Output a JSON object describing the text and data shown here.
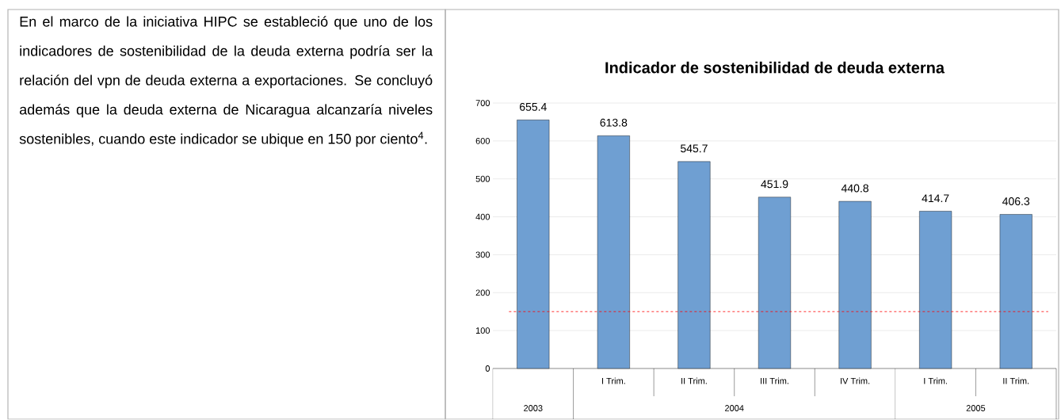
{
  "chart_data": {
    "type": "bar",
    "title": "Indicador de sostenibilidad de deuda externa",
    "categories": [
      null,
      "I Trim.",
      "II Trim.",
      "III Trim.",
      "IV Trim.",
      "I Trim.",
      "II Trim."
    ],
    "values": [
      655.4,
      613.8,
      545.7,
      451.9,
      440.8,
      414.7,
      406.3
    ],
    "color": "#6f9fd2",
    "data_labels": true,
    "ylim": [
      0,
      700
    ],
    "yticks": [
      0,
      100,
      200,
      300,
      400,
      500,
      600,
      700
    ],
    "grid": "y",
    "ref_lines": [
      {
        "axis": "y",
        "value": 150,
        "color": "#ff0000",
        "line_style": "dashed"
      }
    ],
    "annotations": [
      "En el marco de la iniciativa HIPC se estableció que uno de los indicadores de sostenibilidad de la deuda externa podría ser la relación del vpn de deuda externa a exportaciones. Se concluyó además que la deuda externa de Nicaragua alcanzaría niveles sostenibles, cuando este indicador se ubique en 150 por ciento$^{4}$.",
      "2003",
      "2004",
      "2005"
    ]
  }
}
